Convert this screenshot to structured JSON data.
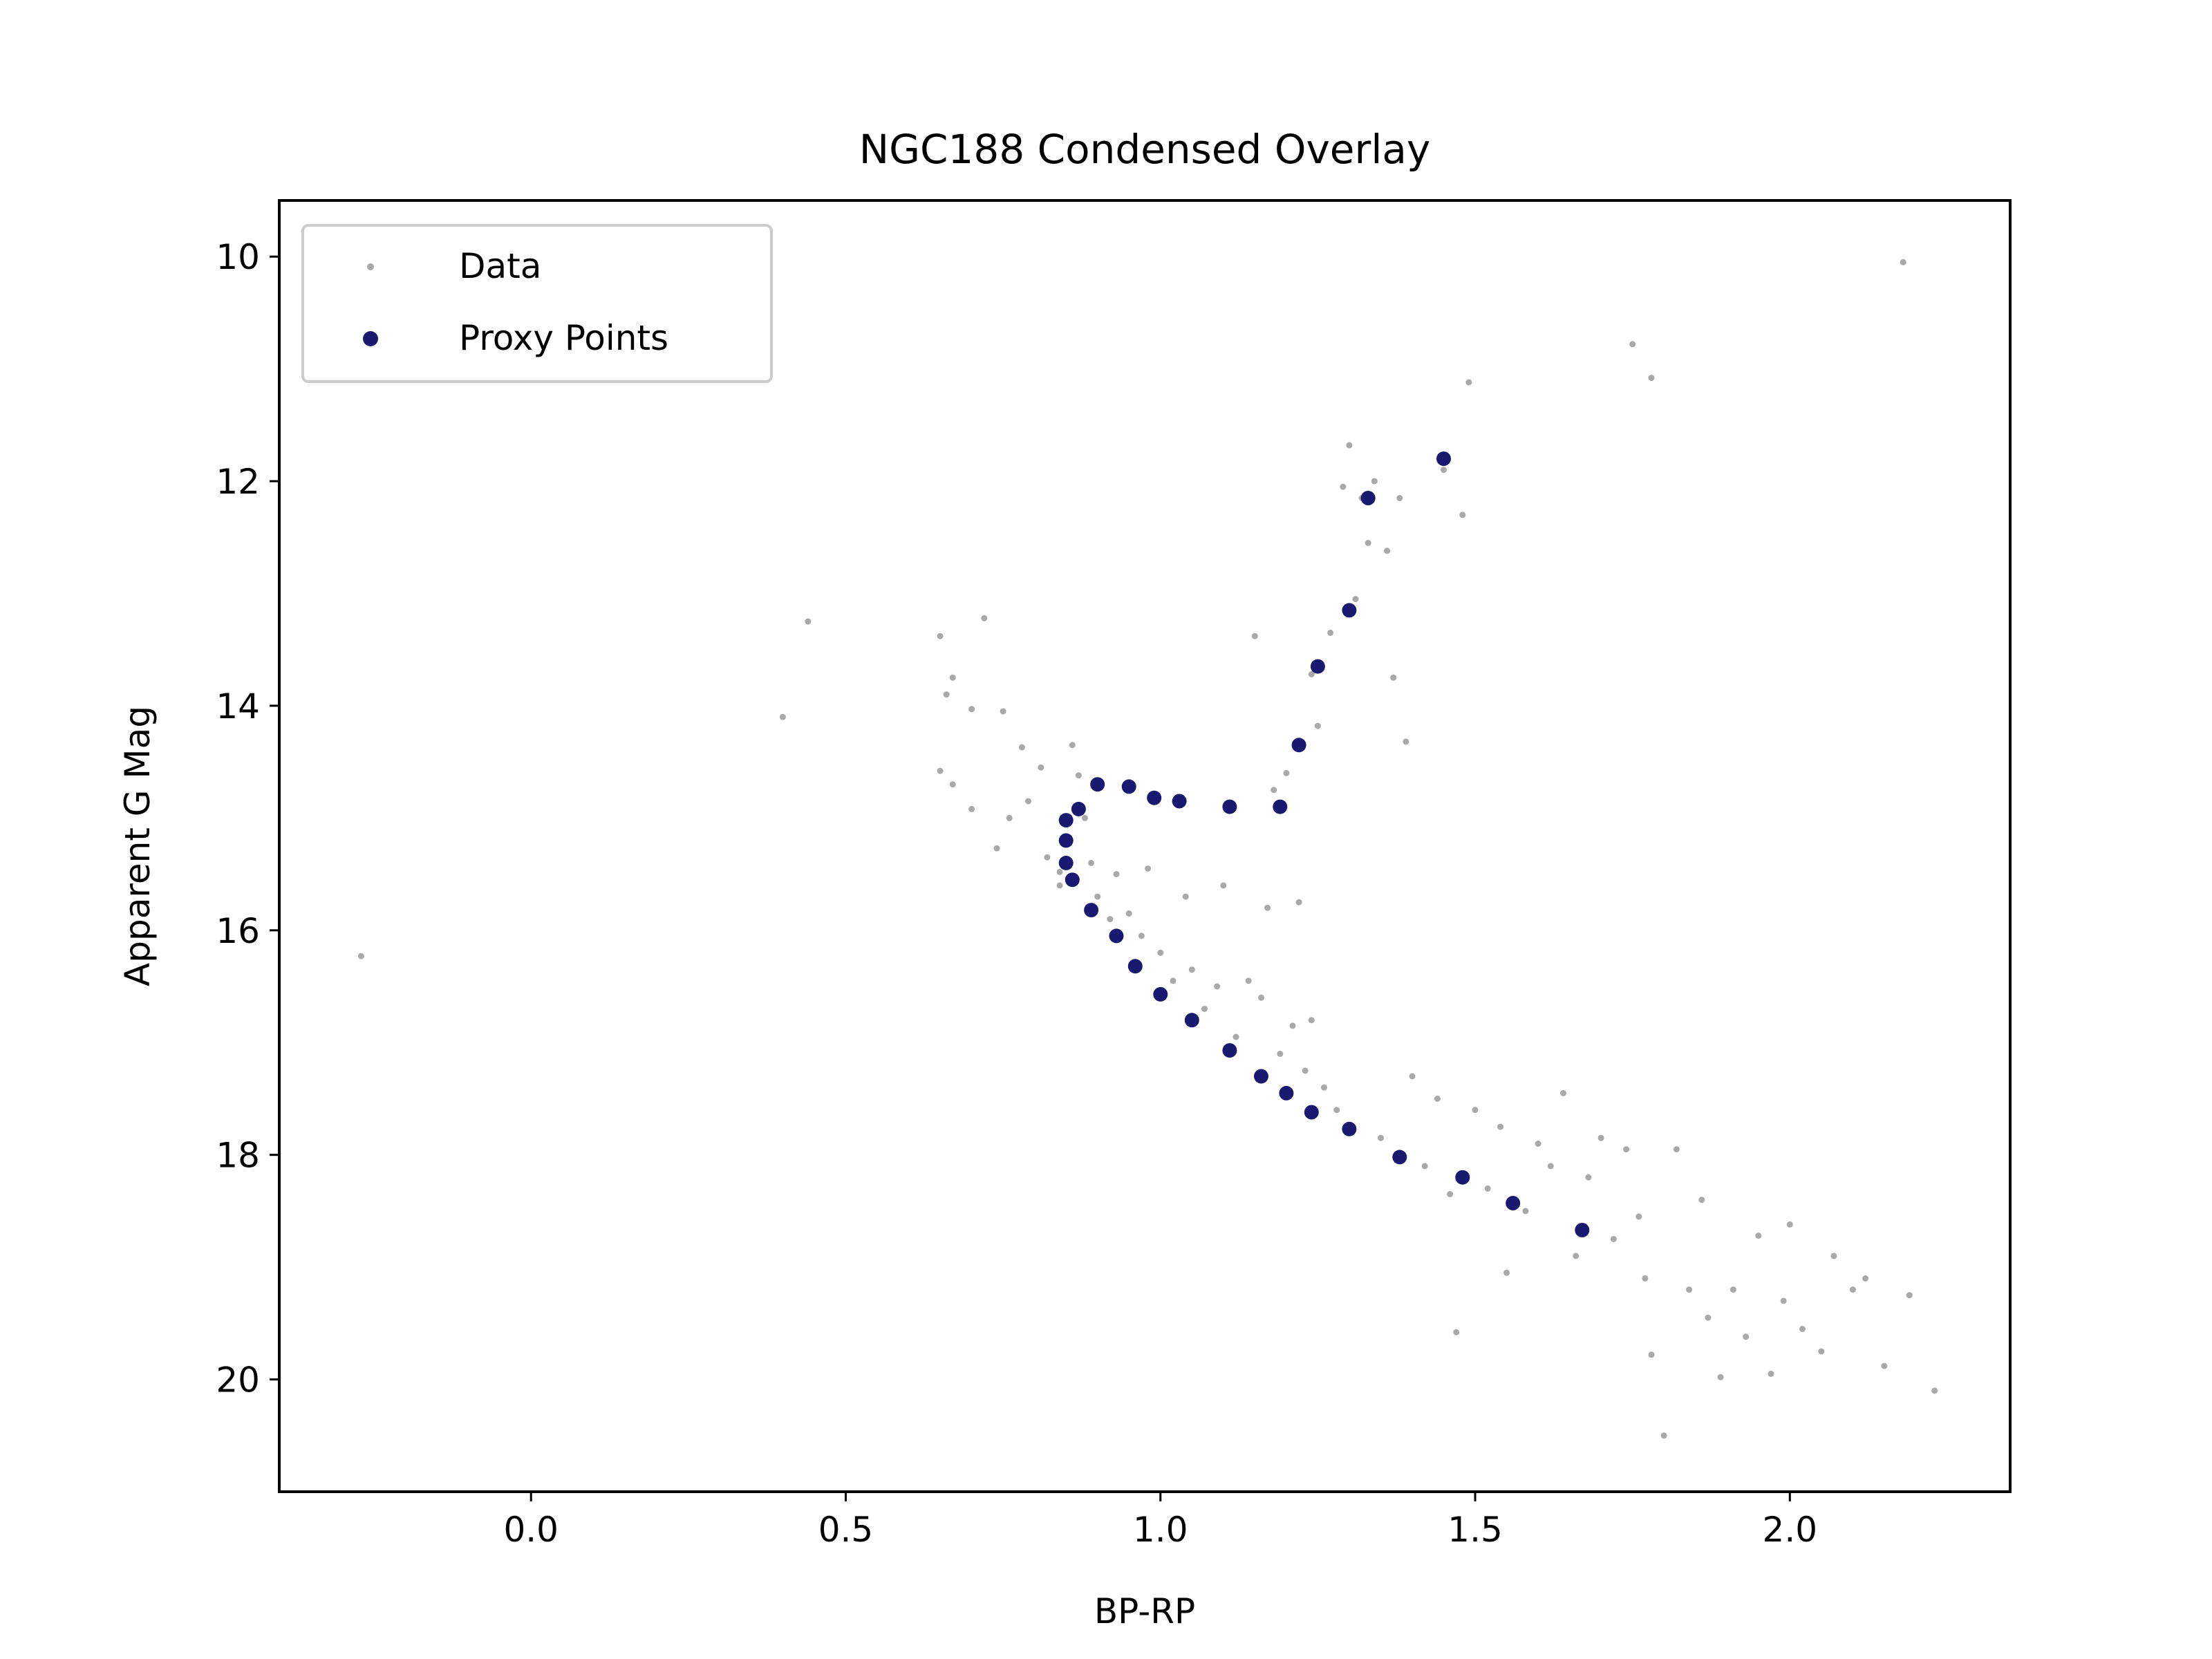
{
  "chart_data": {
    "type": "scatter",
    "title": "NGC188 Condensed Overlay",
    "xlabel": "BP-RP",
    "ylabel": "Apparent G Mag",
    "xlim": [
      -0.4,
      2.35
    ],
    "ylim": [
      21.0,
      9.5
    ],
    "y_inverted": true,
    "grid": false,
    "legend_position": "upper-left",
    "x_ticks": [
      0.0,
      0.5,
      1.0,
      1.5,
      2.0
    ],
    "x_tick_labels": [
      "0.0",
      "0.5",
      "1.0",
      "1.5",
      "2.0"
    ],
    "y_ticks": [
      10,
      12,
      14,
      16,
      18,
      20
    ],
    "y_tick_labels": [
      "10",
      "12",
      "14",
      "16",
      "18",
      "20"
    ],
    "series": [
      {
        "name": "Data",
        "color": "#a9a9a9",
        "marker": "small-dot",
        "points": [
          [
            -0.27,
            16.23
          ],
          [
            0.4,
            14.1
          ],
          [
            0.44,
            13.25
          ],
          [
            0.65,
            13.38
          ],
          [
            0.66,
            13.9
          ],
          [
            0.67,
            13.75
          ],
          [
            0.65,
            14.58
          ],
          [
            0.67,
            14.7
          ],
          [
            0.7,
            14.03
          ],
          [
            0.7,
            14.92
          ],
          [
            0.72,
            13.22
          ],
          [
            0.74,
            15.27
          ],
          [
            0.75,
            14.05
          ],
          [
            0.76,
            15.0
          ],
          [
            0.78,
            14.37
          ],
          [
            0.79,
            14.85
          ],
          [
            0.81,
            14.55
          ],
          [
            0.82,
            15.35
          ],
          [
            0.84,
            15.48
          ],
          [
            0.84,
            15.6
          ],
          [
            0.86,
            14.35
          ],
          [
            0.87,
            14.62
          ],
          [
            0.88,
            15.0
          ],
          [
            0.89,
            15.4
          ],
          [
            0.9,
            15.7
          ],
          [
            0.92,
            15.9
          ],
          [
            0.93,
            15.5
          ],
          [
            0.95,
            15.85
          ],
          [
            0.97,
            16.05
          ],
          [
            0.98,
            15.45
          ],
          [
            1.0,
            16.2
          ],
          [
            1.02,
            16.45
          ],
          [
            1.04,
            15.7
          ],
          [
            1.05,
            16.35
          ],
          [
            1.07,
            16.7
          ],
          [
            1.09,
            16.5
          ],
          [
            1.1,
            15.6
          ],
          [
            1.12,
            16.95
          ],
          [
            1.14,
            16.45
          ],
          [
            1.15,
            13.38
          ],
          [
            1.16,
            16.6
          ],
          [
            1.17,
            15.8
          ],
          [
            1.18,
            14.75
          ],
          [
            1.19,
            17.1
          ],
          [
            1.2,
            14.6
          ],
          [
            1.21,
            16.85
          ],
          [
            1.22,
            15.75
          ],
          [
            1.23,
            17.25
          ],
          [
            1.24,
            13.72
          ],
          [
            1.24,
            16.8
          ],
          [
            1.25,
            14.18
          ],
          [
            1.26,
            17.4
          ],
          [
            1.27,
            13.35
          ],
          [
            1.28,
            17.6
          ],
          [
            1.29,
            12.05
          ],
          [
            1.3,
            11.68
          ],
          [
            1.31,
            13.05
          ],
          [
            1.32,
            12.15
          ],
          [
            1.33,
            12.55
          ],
          [
            1.34,
            12.0
          ],
          [
            1.35,
            17.85
          ],
          [
            1.36,
            12.62
          ],
          [
            1.37,
            13.75
          ],
          [
            1.38,
            12.15
          ],
          [
            1.39,
            14.32
          ],
          [
            1.4,
            17.3
          ],
          [
            1.42,
            18.1
          ],
          [
            1.44,
            17.5
          ],
          [
            1.45,
            11.9
          ],
          [
            1.46,
            18.35
          ],
          [
            1.47,
            19.58
          ],
          [
            1.48,
            12.3
          ],
          [
            1.49,
            11.12
          ],
          [
            1.5,
            17.6
          ],
          [
            1.52,
            18.3
          ],
          [
            1.54,
            17.75
          ],
          [
            1.55,
            19.05
          ],
          [
            1.58,
            18.5
          ],
          [
            1.6,
            17.9
          ],
          [
            1.62,
            18.1
          ],
          [
            1.64,
            17.45
          ],
          [
            1.66,
            18.9
          ],
          [
            1.68,
            18.2
          ],
          [
            1.7,
            17.85
          ],
          [
            1.72,
            18.75
          ],
          [
            1.74,
            17.95
          ],
          [
            1.75,
            10.78
          ],
          [
            1.76,
            18.55
          ],
          [
            1.77,
            19.1
          ],
          [
            1.78,
            11.08
          ],
          [
            1.78,
            19.78
          ],
          [
            1.8,
            20.5
          ],
          [
            1.82,
            17.95
          ],
          [
            1.84,
            19.2
          ],
          [
            1.86,
            18.4
          ],
          [
            1.87,
            19.45
          ],
          [
            1.89,
            19.98
          ],
          [
            1.91,
            19.2
          ],
          [
            1.93,
            19.62
          ],
          [
            1.95,
            18.72
          ],
          [
            1.97,
            19.95
          ],
          [
            1.99,
            19.3
          ],
          [
            2.0,
            18.62
          ],
          [
            2.02,
            19.55
          ],
          [
            2.05,
            19.75
          ],
          [
            2.07,
            18.9
          ],
          [
            2.1,
            19.2
          ],
          [
            2.12,
            19.1
          ],
          [
            2.15,
            19.88
          ],
          [
            2.18,
            10.05
          ],
          [
            2.19,
            19.25
          ],
          [
            2.23,
            20.1
          ]
        ]
      },
      {
        "name": "Proxy Points",
        "color": "#191970",
        "marker": "dot",
        "points": [
          [
            1.45,
            11.8
          ],
          [
            1.33,
            12.15
          ],
          [
            1.3,
            13.15
          ],
          [
            1.25,
            13.65
          ],
          [
            1.22,
            14.35
          ],
          [
            1.19,
            14.9
          ],
          [
            1.11,
            14.9
          ],
          [
            1.03,
            14.85
          ],
          [
            0.99,
            14.82
          ],
          [
            0.95,
            14.72
          ],
          [
            0.9,
            14.7
          ],
          [
            0.87,
            14.92
          ],
          [
            0.85,
            15.02
          ],
          [
            0.85,
            15.2
          ],
          [
            0.85,
            15.4
          ],
          [
            0.86,
            15.55
          ],
          [
            0.89,
            15.82
          ],
          [
            0.93,
            16.05
          ],
          [
            0.96,
            16.32
          ],
          [
            1.0,
            16.57
          ],
          [
            1.05,
            16.8
          ],
          [
            1.11,
            17.07
          ],
          [
            1.16,
            17.3
          ],
          [
            1.2,
            17.45
          ],
          [
            1.24,
            17.62
          ],
          [
            1.3,
            17.77
          ],
          [
            1.38,
            18.02
          ],
          [
            1.48,
            18.2
          ],
          [
            1.56,
            18.43
          ],
          [
            1.67,
            18.67
          ]
        ]
      }
    ]
  }
}
